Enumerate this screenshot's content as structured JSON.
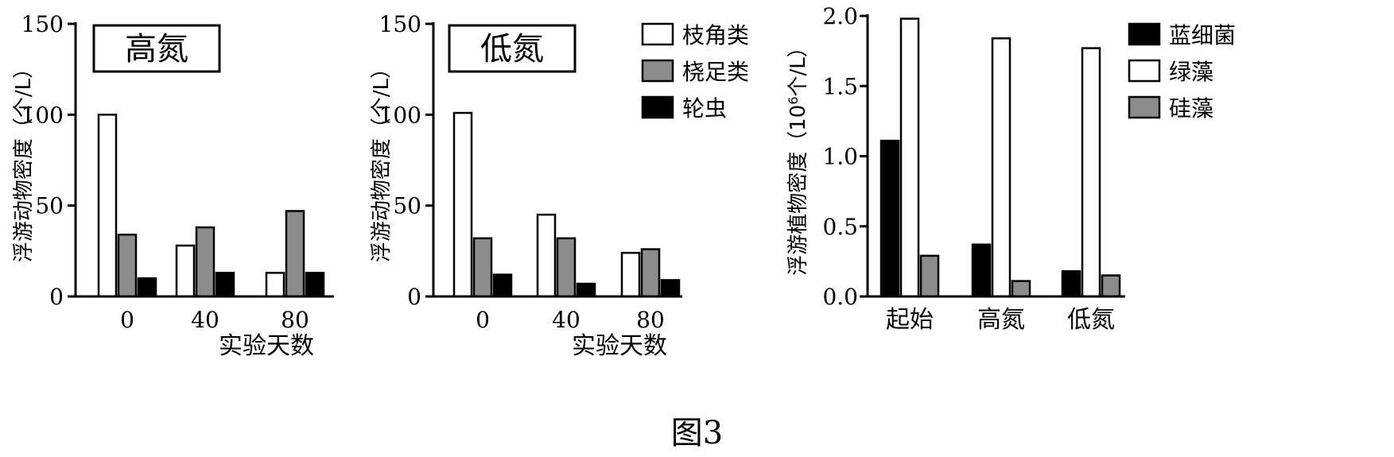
{
  "figure_caption": "图3",
  "colors": {
    "white": "#ffffff",
    "gray": "#8c8c8c",
    "black": "#000000"
  },
  "chart_data": [
    {
      "type": "bar",
      "panel_label": "高氮",
      "categories": [
        "0",
        "40",
        "80"
      ],
      "xlabel": "实验天数",
      "ylabel": "浮游动物密度（个/L）",
      "ylim": [
        0,
        150
      ],
      "yticks": [
        "0",
        "50",
        "100",
        "150"
      ],
      "series": [
        {
          "name": "枝角类",
          "color": "white",
          "values": [
            100,
            28,
            13
          ]
        },
        {
          "name": "桡足类",
          "color": "gray",
          "values": [
            34,
            38,
            47
          ]
        },
        {
          "name": "轮虫",
          "color": "black",
          "values": [
            10,
            13,
            13
          ]
        }
      ]
    },
    {
      "type": "bar",
      "panel_label": "低氮",
      "categories": [
        "0",
        "40",
        "80"
      ],
      "xlabel": "实验天数",
      "ylabel": "浮游动物密度（个/L）",
      "ylim": [
        0,
        150
      ],
      "yticks": [
        "0",
        "50",
        "100",
        "150"
      ],
      "series": [
        {
          "name": "枝角类",
          "color": "white",
          "values": [
            101,
            45,
            24
          ]
        },
        {
          "name": "桡足类",
          "color": "gray",
          "values": [
            32,
            32,
            26
          ]
        },
        {
          "name": "轮虫",
          "color": "black",
          "values": [
            12,
            7,
            9
          ]
        }
      ],
      "legend": [
        "枝角类",
        "桡足类",
        "轮虫"
      ]
    },
    {
      "type": "bar",
      "categories": [
        "起始",
        "高氮",
        "低氮"
      ],
      "xlabel": "",
      "ylabel_prefix": "浮游植物密度（10",
      "ylabel_sup": "6",
      "ylabel_suffix": "个/L）",
      "ylim": [
        0,
        2.0
      ],
      "yticks": [
        "0.0",
        "0.5",
        "1.0",
        "1.5",
        "2.0"
      ],
      "series": [
        {
          "name": "蓝细菌",
          "color": "black",
          "values": [
            1.11,
            0.37,
            0.18
          ]
        },
        {
          "name": "绿藻",
          "color": "white",
          "values": [
            1.98,
            1.84,
            1.77
          ]
        },
        {
          "name": "硅藻",
          "color": "gray",
          "values": [
            0.29,
            0.11,
            0.15
          ]
        }
      ],
      "legend": [
        "蓝细菌",
        "绿藻",
        "硅藻"
      ]
    }
  ]
}
